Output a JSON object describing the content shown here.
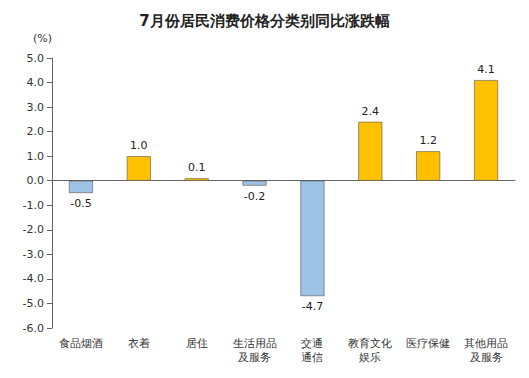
{
  "chart_data": {
    "type": "bar",
    "title": "7月份居民消费价格分类别同比涨跌幅",
    "y_label": "(%)",
    "categories": [
      "食品烟酒",
      "衣着",
      "居住",
      "生活用品\n及服务",
      "交通\n通信",
      "教育文化\n娱乐",
      "医疗保健",
      "其他用品\n及服务"
    ],
    "values": [
      -0.5,
      1.0,
      0.1,
      -0.2,
      -4.7,
      2.4,
      1.2,
      4.1
    ],
    "value_labels": [
      "-0.5",
      "1.0",
      "0.1",
      "-0.2",
      "-4.7",
      "2.4",
      "1.2",
      "4.1"
    ],
    "colors": [
      "#9dc3e6",
      "#ffc000",
      "#ffc000",
      "#9dc3e6",
      "#9dc3e6",
      "#ffc000",
      "#ffc000",
      "#ffc000"
    ],
    "ylim": [
      -6,
      5
    ],
    "yticks": [
      {
        "value": -6,
        "label": "-6.0"
      },
      {
        "value": -5,
        "label": "-5.0"
      },
      {
        "value": -4,
        "label": "-4.0"
      },
      {
        "value": -3,
        "label": "-3.0"
      },
      {
        "value": -2,
        "label": "-2.0"
      },
      {
        "value": -1,
        "label": "-1.0"
      },
      {
        "value": 0,
        "label": "0.0"
      },
      {
        "value": 1,
        "label": "1.0"
      },
      {
        "value": 2,
        "label": "2.0"
      },
      {
        "value": 3,
        "label": "3.0"
      },
      {
        "value": 4,
        "label": "4.0"
      },
      {
        "value": 5,
        "label": "5.0"
      }
    ],
    "grid": false,
    "data_labels": true
  }
}
